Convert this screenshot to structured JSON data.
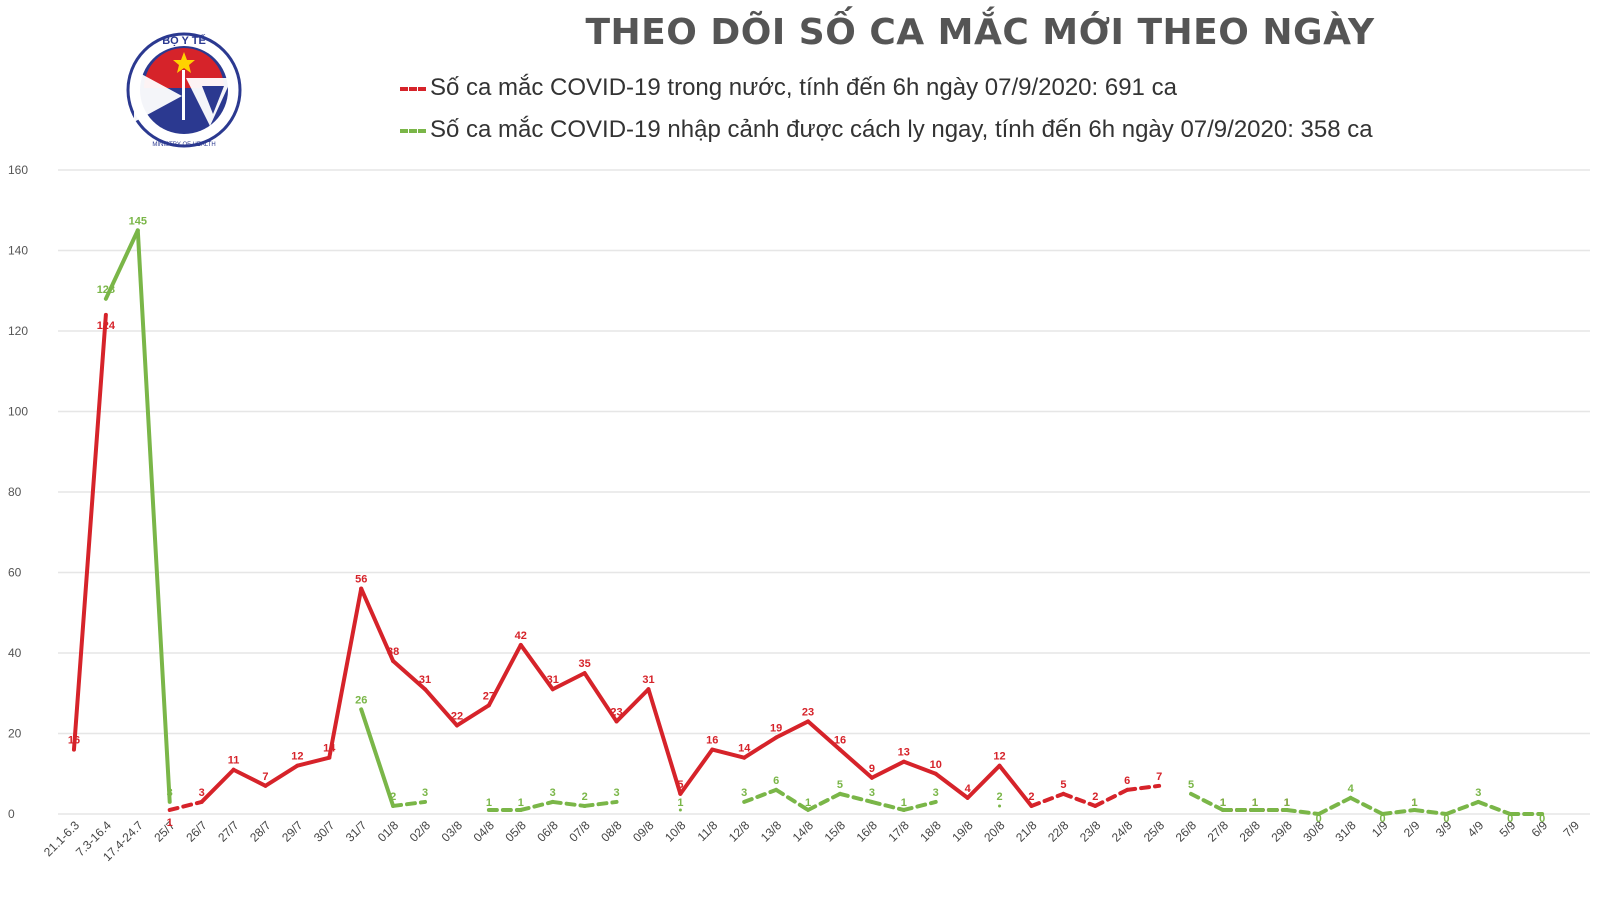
{
  "title": "THEO DÕI SỐ CA MẮC MỚI THEO NGÀY",
  "logo": {
    "top_text": "BỘ Y TẾ",
    "bottom_text": "MINISTRY OF HEALTH",
    "icon": "ministry-of-health-logo"
  },
  "colors": {
    "domestic": "#d6232a",
    "imported": "#7ab648",
    "grid": "#e6e6e6",
    "axis_text": "#555555"
  },
  "chart_data": {
    "type": "line",
    "title": "THEO DÕI SỐ CA MẮC MỚI THEO NGÀY",
    "xlabel": "",
    "ylabel": "",
    "ylim": [
      0,
      160
    ],
    "yticks": [
      0,
      20,
      40,
      60,
      80,
      100,
      120,
      140,
      160
    ],
    "grid": true,
    "legend_position": "top",
    "categories": [
      "21.1-6.3",
      "7.3-16.4",
      "17.4-24.7",
      "25/7",
      "26/7",
      "27/7",
      "28/7",
      "29/7",
      "30/7",
      "31/7",
      "01/8",
      "02/8",
      "03/8",
      "04/8",
      "05/8",
      "06/8",
      "07/8",
      "08/8",
      "09/8",
      "10/8",
      "11/8",
      "12/8",
      "13/8",
      "14/8",
      "15/8",
      "16/8",
      "17/8",
      "18/8",
      "19/8",
      "20/8",
      "21/8",
      "22/8",
      "23/8",
      "24/8",
      "25/8",
      "26/8",
      "27/8",
      "28/8",
      "29/8",
      "30/8",
      "31/8",
      "1/9",
      "2/9",
      "3/9",
      "4/9",
      "5/9",
      "6/9",
      "7/9"
    ],
    "series": [
      {
        "name": "Số ca mắc COVID-19 trong nước, tính đến 6h ngày 07/9/2020: 691 ca",
        "color": "#d6232a",
        "values": [
          16,
          124,
          null,
          1,
          3,
          11,
          7,
          12,
          14,
          56,
          38,
          31,
          22,
          27,
          42,
          31,
          35,
          23,
          31,
          5,
          16,
          14,
          19,
          23,
          16,
          9,
          13,
          10,
          4,
          12,
          2,
          5,
          2,
          6,
          7,
          null,
          1,
          1,
          1,
          null,
          null,
          null,
          1,
          null,
          null,
          null,
          null,
          null
        ]
      },
      {
        "name": "Số ca mắc COVID-19 nhập cảnh được cách ly ngay, tính đến 6h ngày 07/9/2020: 358 ca",
        "color": "#7ab648",
        "values": [
          null,
          128,
          145,
          3,
          null,
          null,
          null,
          null,
          null,
          26,
          2,
          3,
          null,
          1,
          1,
          3,
          2,
          3,
          null,
          1,
          null,
          3,
          6,
          1,
          5,
          3,
          1,
          3,
          null,
          2,
          null,
          null,
          null,
          null,
          null,
          5,
          1,
          1,
          1,
          0,
          4,
          0,
          1,
          0,
          3,
          0,
          0,
          null
        ]
      }
    ]
  }
}
